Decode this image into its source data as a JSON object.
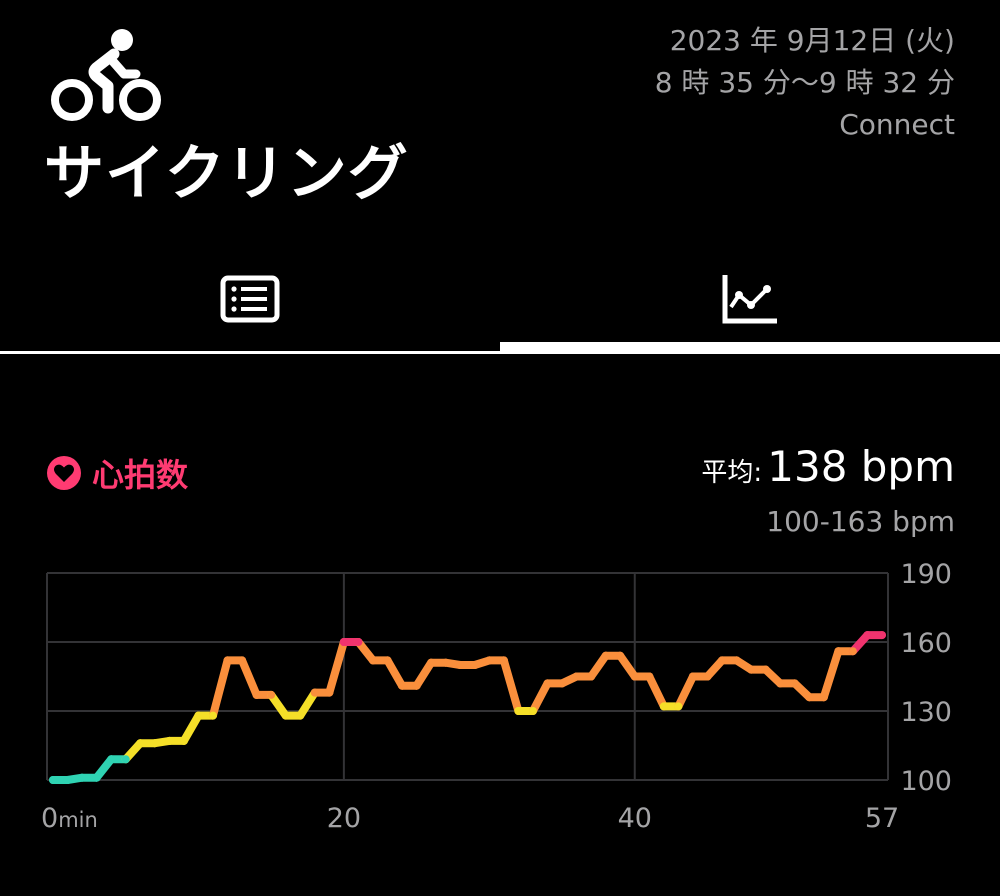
{
  "header": {
    "activity_icon": "bicycle-icon",
    "activity_title": "サイクリング",
    "date": "2023 年 9月12日 (火)",
    "time_range": "8 時 35 分〜9 時 32 分",
    "source": "Connect"
  },
  "tabs": [
    {
      "name": "summary",
      "icon": "list-icon",
      "selected": false
    },
    {
      "name": "graph",
      "icon": "chart-icon",
      "selected": true
    }
  ],
  "heart_rate": {
    "icon": "heart-icon",
    "label": "心拍数",
    "average_label": "平均:",
    "average_value": "138 bpm",
    "range": "100-163 bpm",
    "color": "#ff3b72"
  },
  "chart_data": {
    "type": "line",
    "xlabel": "",
    "ylabel": "",
    "x_unit_label": "min",
    "x_ticks": [
      0,
      20,
      40,
      57
    ],
    "x_tick_labels": [
      "0",
      "20",
      "40",
      "57"
    ],
    "y_ticks": [
      100,
      130,
      160,
      190
    ],
    "y_tick_labels": [
      "100",
      "130",
      "160",
      "190"
    ],
    "xlim": [
      0,
      57
    ],
    "ylim": [
      100,
      190
    ],
    "grid": true,
    "zone_colors": {
      "low": "#2fd3b3",
      "light": "#f5df28",
      "moderate": "#fa8f3c",
      "high": "#f0336e"
    },
    "series": [
      {
        "x": [
          0,
          1,
          2,
          3,
          4,
          5,
          6,
          7,
          8,
          9,
          10,
          11,
          12,
          13,
          14,
          15,
          16,
          17,
          18,
          19,
          20,
          21,
          22,
          23,
          24,
          25,
          26,
          27,
          28,
          29,
          30,
          31,
          32,
          33,
          34,
          35,
          36,
          37,
          38,
          39,
          40,
          41,
          42,
          43,
          44,
          45,
          46,
          47,
          48,
          49,
          50,
          51,
          52,
          53,
          54,
          55,
          56,
          57
        ],
        "values": [
          100,
          100,
          101,
          101,
          109,
          109,
          116,
          116,
          117,
          117,
          128,
          128,
          152,
          152,
          137,
          137,
          128,
          128,
          138,
          138,
          160,
          160,
          152,
          152,
          141,
          141,
          151,
          151,
          150,
          150,
          152,
          152,
          130,
          130,
          142,
          142,
          145,
          145,
          154,
          154,
          145,
          145,
          132,
          132,
          145,
          145,
          152,
          152,
          148,
          148,
          142,
          142,
          136,
          136,
          156,
          156,
          163,
          163
        ]
      }
    ]
  }
}
